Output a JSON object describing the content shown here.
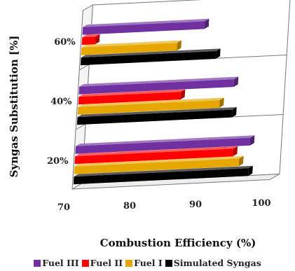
{
  "chart_data": {
    "type": "bar",
    "orientation": "horizontal",
    "style": "3d-clustered",
    "categories": [
      "20%",
      "40%",
      "60%"
    ],
    "xlabel": "Combustion Efficiency (%)",
    "ylabel": "Syngas Substitution [%]",
    "xlim": [
      70,
      100
    ],
    "xticks": [
      "70",
      "80",
      "90",
      "100"
    ],
    "grid": false,
    "legend_position": "bottom",
    "series": [
      {
        "name": "Fuel III",
        "color": "#7030A0",
        "values": [
          96.5,
          93.5,
          88.5
        ]
      },
      {
        "name": "Fuel II",
        "color": "#FF0000",
        "values": [
          94.0,
          85.5,
          72.0
        ]
      },
      {
        "name": "Fuel I",
        "color": "#E6A800",
        "values": [
          95.0,
          91.5,
          84.5
        ]
      },
      {
        "name": "Simulated Syngas",
        "color": "#000000",
        "values": [
          96.5,
          93.5,
          90.5
        ]
      }
    ]
  }
}
